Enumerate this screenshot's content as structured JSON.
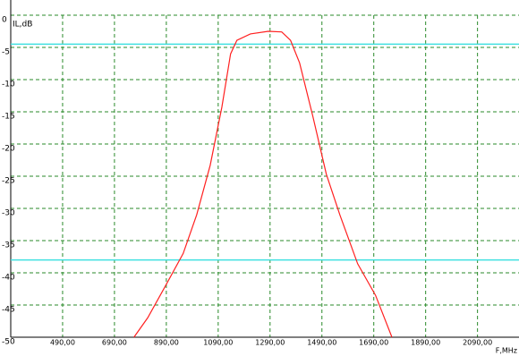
{
  "chart_data": {
    "type": "line",
    "y_label": "IL,dB",
    "x_label": "F,MHz",
    "xlim": [
      290,
      2250
    ],
    "ylim": [
      -50,
      0
    ],
    "xticks": [
      {
        "value": 490,
        "label": "490,00"
      },
      {
        "value": 690,
        "label": "690,00"
      },
      {
        "value": 890,
        "label": "890,00"
      },
      {
        "value": 1090,
        "label": "1090,00"
      },
      {
        "value": 1290,
        "label": "1290,00"
      },
      {
        "value": 1490,
        "label": "1490,00"
      },
      {
        "value": 1690,
        "label": "1690,00"
      },
      {
        "value": 1890,
        "label": "1890,00"
      },
      {
        "value": 2090,
        "label": "2090,00"
      }
    ],
    "yticks": [
      0,
      -5,
      -10,
      -15,
      -20,
      -25,
      -30,
      -35,
      -40,
      -45,
      -50
    ],
    "grid": true,
    "reference_lines": {
      "color": "#40e0e0",
      "values": [
        -4.5,
        -38
      ]
    },
    "series": [
      {
        "color": "#ff2020",
        "x": [
          765,
          818,
          887,
          955,
          1007,
          1059,
          1104,
          1138,
          1162,
          1214,
          1283,
          1335,
          1369,
          1404,
          1455,
          1507,
          1559,
          1628,
          1697,
          1760
        ],
        "values": [
          -50,
          -47,
          -42,
          -37,
          -31,
          -23.3,
          -14.3,
          -6,
          -3.9,
          -2.9,
          -2.5,
          -2.6,
          -3.9,
          -7.4,
          -15.7,
          -24.7,
          -31,
          -38.6,
          -43.5,
          -50
        ]
      }
    ]
  }
}
